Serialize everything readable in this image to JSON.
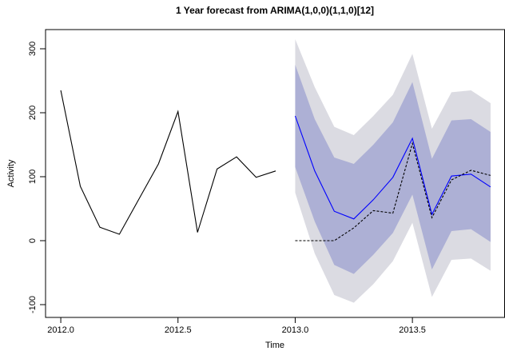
{
  "chart_data": {
    "type": "line",
    "title": "1 Year forecast from ARIMA(1,0,0)(1,1,0)[12]",
    "x_label": "Time",
    "y_label": "Activity",
    "x": [
      2012,
      2012.0833,
      2012.1667,
      2012.25,
      2012.3333,
      2012.4167,
      2012.5,
      2012.5833,
      2012.6667,
      2012.75,
      2012.8333,
      2012.9167,
      2013,
      2013.0833,
      2013.1667,
      2013.25,
      2013.3333,
      2013.4167,
      2013.5,
      2013.5833,
      2013.6667,
      2013.75,
      2013.8333
    ],
    "xlim": [
      2011.935,
      2013.895
    ],
    "xticks": [
      {
        "value": 2012,
        "label": "2012.0"
      },
      2012.5,
      {
        "value": 2013,
        "label": "2013.0"
      },
      2013.5
    ],
    "ylim": [
      -120,
      330
    ],
    "yticks": [
      -100,
      0,
      100,
      200,
      300
    ],
    "bands": [
      {
        "color": "#dbdbe2",
        "lower": [
          null,
          null,
          null,
          null,
          null,
          null,
          null,
          null,
          null,
          null,
          null,
          null,
          75,
          -20,
          -85,
          -97,
          -68,
          -32,
          28,
          -88,
          -30,
          -28,
          -47
        ],
        "upper": [
          null,
          null,
          null,
          null,
          null,
          null,
          null,
          null,
          null,
          null,
          null,
          null,
          315,
          240,
          178,
          165,
          195,
          228,
          292,
          175,
          232,
          235,
          215
        ]
      },
      {
        "color": "#adb0d5",
        "lower": [
          null,
          null,
          null,
          null,
          null,
          null,
          null,
          null,
          null,
          null,
          null,
          null,
          115,
          30,
          -38,
          -52,
          -22,
          12,
          72,
          -45,
          15,
          18,
          -2
        ],
        "upper": [
          null,
          null,
          null,
          null,
          null,
          null,
          null,
          null,
          null,
          null,
          null,
          null,
          275,
          190,
          130,
          120,
          150,
          185,
          248,
          128,
          188,
          190,
          170
        ]
      }
    ],
    "series": [
      {
        "color": "#000000",
        "dash": false,
        "values": [
          235,
          85,
          21,
          10,
          65,
          120,
          202,
          13,
          112,
          131,
          99,
          109,
          null,
          null,
          null,
          null,
          null,
          null,
          null,
          null,
          null,
          null,
          null
        ]
      },
      {
        "color": "#0000ff",
        "dash": false,
        "values": [
          null,
          null,
          null,
          null,
          null,
          null,
          null,
          null,
          null,
          null,
          null,
          null,
          195,
          109,
          46,
          34,
          64,
          99,
          160,
          41,
          101,
          104,
          84
        ]
      },
      {
        "color": "#000000",
        "dash": true,
        "values": [
          null,
          null,
          null,
          null,
          null,
          null,
          null,
          null,
          null,
          null,
          null,
          null,
          0,
          0,
          0,
          20,
          47,
          43,
          152,
          36,
          95,
          110,
          102
        ]
      }
    ]
  }
}
